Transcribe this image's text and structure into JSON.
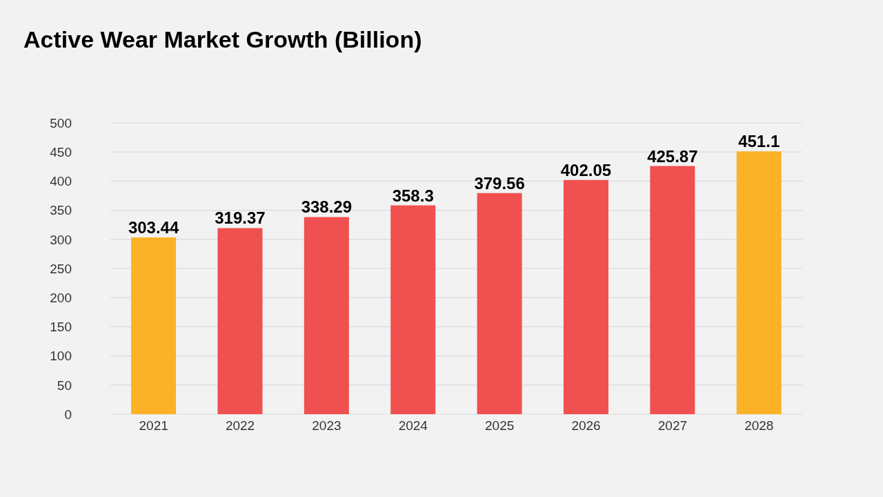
{
  "chart_data": {
    "type": "bar",
    "title": "Active Wear Market Growth (Billion)",
    "categories": [
      "2021",
      "2022",
      "2023",
      "2024",
      "2025",
      "2026",
      "2027",
      "2028"
    ],
    "values": [
      303.44,
      319.37,
      338.29,
      358.3,
      379.56,
      402.05,
      425.87,
      451.1
    ],
    "colors": [
      "#fbb226",
      "#f05050",
      "#f05050",
      "#f05050",
      "#f05050",
      "#f05050",
      "#f05050",
      "#fbb226"
    ],
    "ylim": [
      0,
      500
    ],
    "yticks": [
      0,
      50,
      100,
      150,
      200,
      250,
      300,
      350,
      400,
      450,
      500
    ],
    "grid": "y",
    "data_labels": true
  }
}
